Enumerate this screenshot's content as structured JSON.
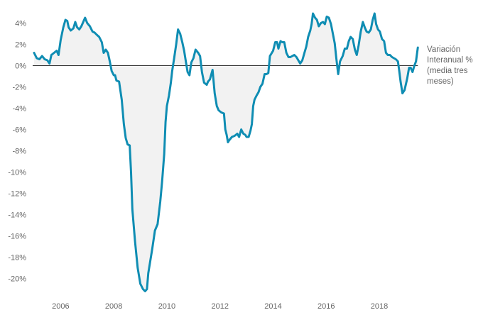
{
  "chart_data": {
    "type": "line",
    "title": "",
    "xlabel": "",
    "ylabel": "",
    "series_label_lines": [
      "Variación",
      "Interanual %",
      "(media tres",
      "meses)"
    ],
    "xlim": [
      2005.0,
      2019.55
    ],
    "ylim": [
      -21.5,
      4.9
    ],
    "x_ticks": [
      2006,
      2008,
      2010,
      2012,
      2014,
      2016,
      2018
    ],
    "x_tick_labels": [
      "2006",
      "2008",
      "2010",
      "2012",
      "2014",
      "2016",
      "2018"
    ],
    "y_ticks": [
      4,
      2,
      0,
      -2,
      -4,
      -6,
      -8,
      -10,
      -12,
      -14,
      -16,
      -18,
      -20
    ],
    "y_tick_labels": [
      "4%",
      "2%",
      "0%",
      "-2%",
      "-4%",
      "-6%",
      "-8%",
      "-10%",
      "-12%",
      "-14%",
      "-16%",
      "-18%",
      "-20%"
    ],
    "grid": false,
    "baseline_y": 0,
    "colors": {
      "line": "#0f8db3",
      "fill": "#f2f2f2",
      "axis": "#333333",
      "text": "#666666"
    },
    "series": [
      {
        "points": [
          [
            2005.0,
            1.2
          ],
          [
            2005.1,
            0.7
          ],
          [
            2005.2,
            0.6
          ],
          [
            2005.3,
            0.9
          ],
          [
            2005.4,
            0.6
          ],
          [
            2005.5,
            0.5
          ],
          [
            2005.58,
            0.2
          ],
          [
            2005.65,
            1.0
          ],
          [
            2005.75,
            1.2
          ],
          [
            2005.85,
            1.4
          ],
          [
            2005.92,
            1.0
          ],
          [
            2006.0,
            2.4
          ],
          [
            2006.1,
            3.6
          ],
          [
            2006.18,
            4.3
          ],
          [
            2006.25,
            4.2
          ],
          [
            2006.3,
            3.6
          ],
          [
            2006.38,
            3.3
          ],
          [
            2006.48,
            3.5
          ],
          [
            2006.55,
            4.1
          ],
          [
            2006.62,
            3.6
          ],
          [
            2006.7,
            3.4
          ],
          [
            2006.78,
            3.7
          ],
          [
            2006.85,
            4.1
          ],
          [
            2006.92,
            4.5
          ],
          [
            2007.0,
            4.0
          ],
          [
            2007.1,
            3.7
          ],
          [
            2007.2,
            3.2
          ],
          [
            2007.28,
            3.1
          ],
          [
            2007.36,
            2.9
          ],
          [
            2007.45,
            2.7
          ],
          [
            2007.55,
            2.2
          ],
          [
            2007.62,
            1.2
          ],
          [
            2007.7,
            1.5
          ],
          [
            2007.78,
            1.2
          ],
          [
            2007.85,
            0.4
          ],
          [
            2007.92,
            -0.5
          ],
          [
            2008.0,
            -0.9
          ],
          [
            2008.05,
            -0.9
          ],
          [
            2008.1,
            -1.4
          ],
          [
            2008.2,
            -1.5
          ],
          [
            2008.3,
            -3.2
          ],
          [
            2008.38,
            -5.5
          ],
          [
            2008.45,
            -6.8
          ],
          [
            2008.52,
            -7.4
          ],
          [
            2008.6,
            -7.5
          ],
          [
            2008.65,
            -10.0
          ],
          [
            2008.7,
            -13.5
          ],
          [
            2008.8,
            -16.5
          ],
          [
            2008.9,
            -19.0
          ],
          [
            2009.0,
            -20.5
          ],
          [
            2009.1,
            -21.0
          ],
          [
            2009.18,
            -21.2
          ],
          [
            2009.25,
            -21.0
          ],
          [
            2009.3,
            -19.5
          ],
          [
            2009.45,
            -17.2
          ],
          [
            2009.55,
            -15.5
          ],
          [
            2009.65,
            -14.9
          ],
          [
            2009.75,
            -12.8
          ],
          [
            2009.82,
            -10.9
          ],
          [
            2009.9,
            -8.3
          ],
          [
            2009.95,
            -5.3
          ],
          [
            2010.0,
            -3.8
          ],
          [
            2010.08,
            -2.8
          ],
          [
            2010.15,
            -1.6
          ],
          [
            2010.2,
            -0.5
          ],
          [
            2010.28,
            0.8
          ],
          [
            2010.35,
            2.0
          ],
          [
            2010.42,
            3.4
          ],
          [
            2010.5,
            3.0
          ],
          [
            2010.58,
            2.2
          ],
          [
            2010.65,
            1.4
          ],
          [
            2010.72,
            0.3
          ],
          [
            2010.78,
            -0.6
          ],
          [
            2010.85,
            -0.9
          ],
          [
            2010.92,
            0.3
          ],
          [
            2011.0,
            0.7
          ],
          [
            2011.08,
            1.5
          ],
          [
            2011.18,
            1.2
          ],
          [
            2011.25,
            0.9
          ],
          [
            2011.32,
            -0.6
          ],
          [
            2011.4,
            -1.6
          ],
          [
            2011.5,
            -1.8
          ],
          [
            2011.55,
            -1.5
          ],
          [
            2011.62,
            -1.3
          ],
          [
            2011.72,
            -0.4
          ],
          [
            2011.8,
            -2.6
          ],
          [
            2011.88,
            -3.8
          ],
          [
            2011.95,
            -4.2
          ],
          [
            2012.05,
            -4.4
          ],
          [
            2012.15,
            -4.5
          ],
          [
            2012.2,
            -6.0
          ],
          [
            2012.25,
            -6.5
          ],
          [
            2012.3,
            -7.2
          ],
          [
            2012.35,
            -7.0
          ],
          [
            2012.45,
            -6.7
          ],
          [
            2012.55,
            -6.6
          ],
          [
            2012.65,
            -6.4
          ],
          [
            2012.72,
            -6.7
          ],
          [
            2012.8,
            -6.0
          ],
          [
            2012.88,
            -6.4
          ],
          [
            2012.95,
            -6.5
          ],
          [
            2013.0,
            -6.7
          ],
          [
            2013.08,
            -6.7
          ],
          [
            2013.15,
            -6.1
          ],
          [
            2013.2,
            -5.5
          ],
          [
            2013.25,
            -3.8
          ],
          [
            2013.3,
            -3.2
          ],
          [
            2013.38,
            -2.8
          ],
          [
            2013.45,
            -2.5
          ],
          [
            2013.52,
            -2.0
          ],
          [
            2013.6,
            -1.7
          ],
          [
            2013.68,
            -0.8
          ],
          [
            2013.75,
            -0.8
          ],
          [
            2013.82,
            -0.7
          ],
          [
            2013.88,
            0.9
          ],
          [
            2014.0,
            1.4
          ],
          [
            2014.08,
            2.2
          ],
          [
            2014.15,
            2.2
          ],
          [
            2014.2,
            1.6
          ],
          [
            2014.28,
            2.3
          ],
          [
            2014.35,
            2.2
          ],
          [
            2014.42,
            2.2
          ],
          [
            2014.5,
            1.2
          ],
          [
            2014.58,
            0.8
          ],
          [
            2014.65,
            0.8
          ],
          [
            2014.72,
            0.9
          ],
          [
            2014.8,
            1.0
          ],
          [
            2014.88,
            0.8
          ],
          [
            2014.95,
            0.5
          ],
          [
            2015.02,
            0.2
          ],
          [
            2015.1,
            0.5
          ],
          [
            2015.18,
            1.2
          ],
          [
            2015.25,
            1.8
          ],
          [
            2015.32,
            2.7
          ],
          [
            2015.4,
            3.3
          ],
          [
            2015.45,
            3.9
          ],
          [
            2015.5,
            4.9
          ],
          [
            2015.58,
            4.5
          ],
          [
            2015.65,
            4.3
          ],
          [
            2015.72,
            3.7
          ],
          [
            2015.8,
            4.0
          ],
          [
            2015.88,
            4.1
          ],
          [
            2015.95,
            3.9
          ],
          [
            2016.02,
            4.6
          ],
          [
            2016.1,
            4.5
          ],
          [
            2016.18,
            3.9
          ],
          [
            2016.25,
            3.0
          ],
          [
            2016.32,
            2.1
          ],
          [
            2016.38,
            0.7
          ],
          [
            2016.45,
            -0.8
          ],
          [
            2016.52,
            0.4
          ],
          [
            2016.62,
            0.9
          ],
          [
            2016.7,
            1.6
          ],
          [
            2016.78,
            1.6
          ],
          [
            2016.85,
            2.3
          ],
          [
            2016.92,
            2.7
          ],
          [
            2017.0,
            2.5
          ],
          [
            2017.08,
            1.5
          ],
          [
            2017.15,
            1.0
          ],
          [
            2017.22,
            1.9
          ],
          [
            2017.3,
            3.2
          ],
          [
            2017.38,
            4.1
          ],
          [
            2017.45,
            3.6
          ],
          [
            2017.52,
            3.2
          ],
          [
            2017.6,
            3.1
          ],
          [
            2017.68,
            3.4
          ],
          [
            2017.75,
            4.3
          ],
          [
            2017.82,
            4.9
          ],
          [
            2017.88,
            3.9
          ],
          [
            2017.95,
            3.4
          ],
          [
            2018.02,
            3.2
          ],
          [
            2018.1,
            2.5
          ],
          [
            2018.18,
            2.3
          ],
          [
            2018.25,
            1.2
          ],
          [
            2018.32,
            1.0
          ],
          [
            2018.4,
            1.0
          ],
          [
            2018.48,
            0.8
          ],
          [
            2018.55,
            0.7
          ],
          [
            2018.62,
            0.6
          ],
          [
            2018.7,
            0.4
          ],
          [
            2018.75,
            -0.5
          ],
          [
            2018.8,
            -1.5
          ],
          [
            2018.87,
            -2.6
          ],
          [
            2018.95,
            -2.3
          ],
          [
            2019.05,
            -1.2
          ],
          [
            2019.12,
            -0.2
          ],
          [
            2019.18,
            -0.2
          ],
          [
            2019.25,
            -0.6
          ],
          [
            2019.32,
            0.0
          ],
          [
            2019.38,
            0.4
          ],
          [
            2019.45,
            1.7
          ]
        ]
      }
    ]
  }
}
